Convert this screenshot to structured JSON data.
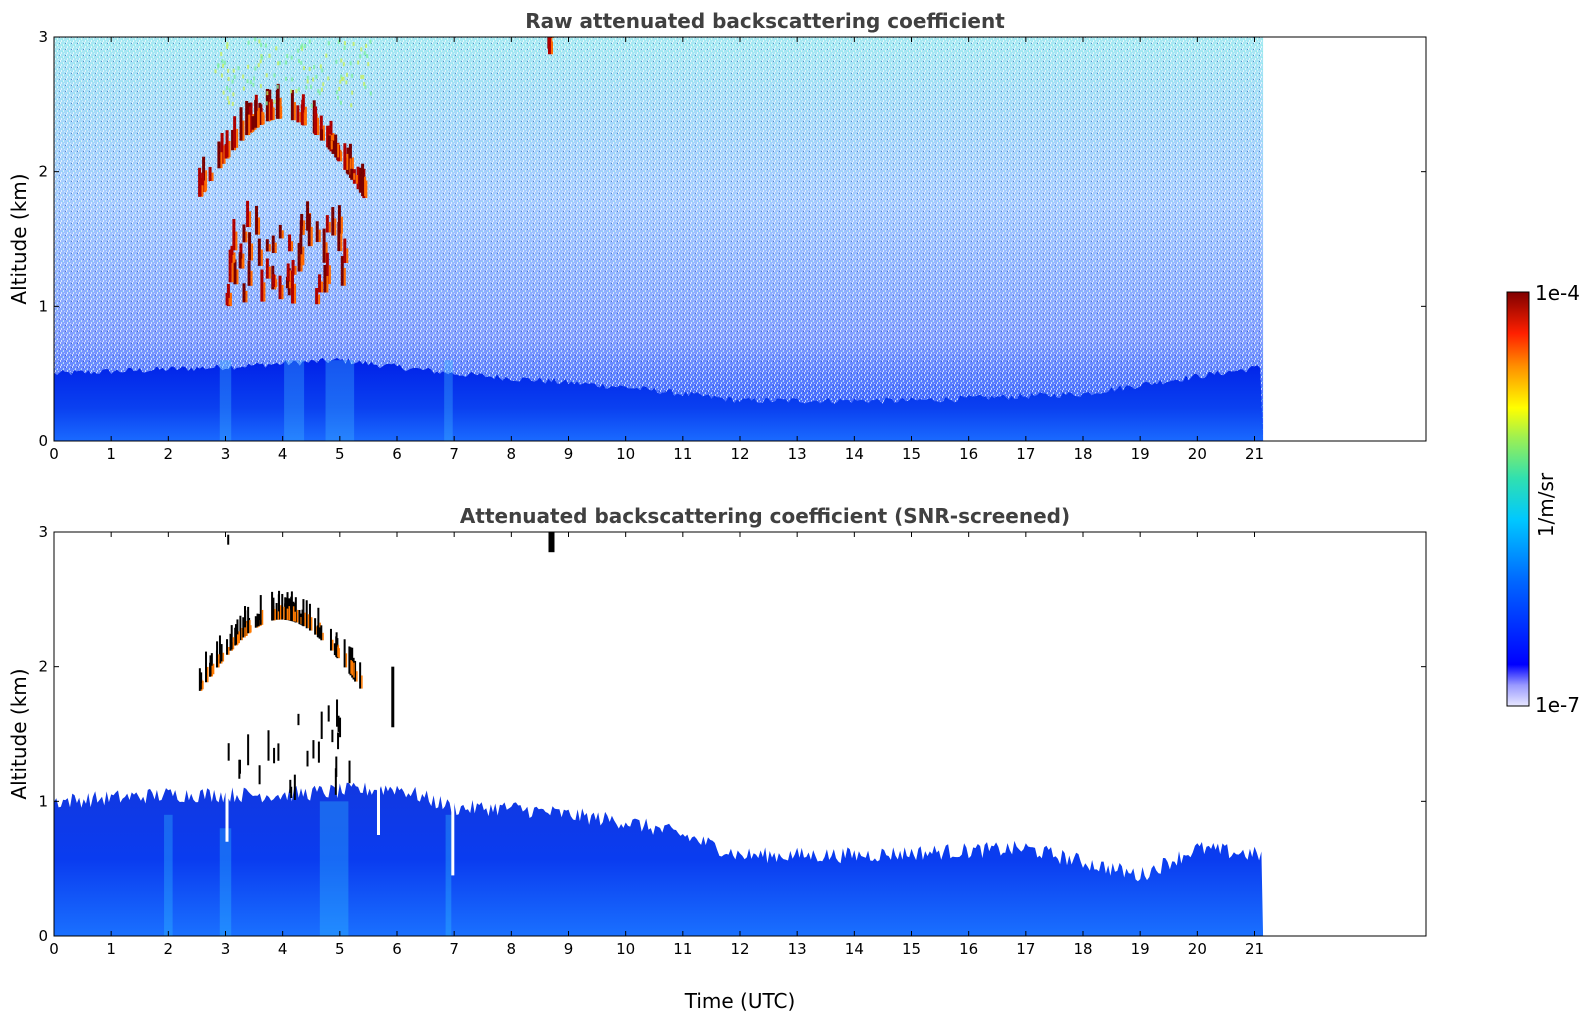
{
  "chart_data": [
    {
      "type": "heatmap",
      "title": "Raw attenuated backscattering coefficient",
      "xlabel": "",
      "ylabel": "Altitude (km)",
      "xlim": [
        0,
        24
      ],
      "ylim": [
        0,
        3
      ],
      "x_ticks": [
        "0",
        "1",
        "2",
        "3",
        "4",
        "5",
        "6",
        "7",
        "8",
        "9",
        "10",
        "11",
        "12",
        "13",
        "14",
        "15",
        "16",
        "17",
        "18",
        "19",
        "20",
        "21"
      ],
      "y_ticks": [
        "0",
        "1",
        "2",
        "3"
      ],
      "data_time_range_utc": [
        0,
        21.15
      ],
      "features": {
        "boundary_layer_top_km": [
          [
            0,
            0.5
          ],
          [
            3,
            0.55
          ],
          [
            5,
            0.6
          ],
          [
            7,
            0.5
          ],
          [
            10,
            0.4
          ],
          [
            12,
            0.3
          ],
          [
            15,
            0.3
          ],
          [
            18,
            0.35
          ],
          [
            19.5,
            0.45
          ],
          [
            21.15,
            0.55
          ]
        ],
        "cloud_layers": [
          {
            "time_utc": [
              2.5,
              5.4
            ],
            "altitude_km": [
              1.8,
              2.5
            ]
          },
          {
            "time_utc": [
              3.0,
              5.2
            ],
            "altitude_km": [
              1.0,
              1.6
            ]
          },
          {
            "time_utc": [
              8.6,
              8.75
            ],
            "altitude_km": [
              2.85,
              3.0
            ]
          }
        ]
      },
      "grid": false
    },
    {
      "type": "heatmap",
      "title": "Attenuated backscattering coefficient (SNR-screened)",
      "xlabel": "Time (UTC)",
      "ylabel": "Altitude (km)",
      "xlim": [
        0,
        24
      ],
      "ylim": [
        0,
        3
      ],
      "x_ticks": [
        "0",
        "1",
        "2",
        "3",
        "4",
        "5",
        "6",
        "7",
        "8",
        "9",
        "10",
        "11",
        "12",
        "13",
        "14",
        "15",
        "16",
        "17",
        "18",
        "19",
        "20",
        "21"
      ],
      "y_ticks": [
        "0",
        "1",
        "2",
        "3"
      ],
      "data_time_range_utc": [
        0,
        21.15
      ],
      "features": {
        "screened_layer_top_km": [
          [
            0,
            1.0
          ],
          [
            2,
            1.05
          ],
          [
            4,
            1.05
          ],
          [
            6,
            1.1
          ],
          [
            7,
            0.95
          ],
          [
            8,
            0.95
          ],
          [
            10,
            0.85
          ],
          [
            11,
            0.75
          ],
          [
            12,
            0.6
          ],
          [
            14,
            0.6
          ],
          [
            17,
            0.65
          ],
          [
            18,
            0.55
          ],
          [
            19,
            0.45
          ],
          [
            20,
            0.65
          ],
          [
            21.15,
            0.6
          ]
        ]
      },
      "grid": false
    }
  ],
  "colorbar": {
    "label": "1/m/sr",
    "max_label": "1e-4",
    "min_label": "1e-7",
    "scale": "log",
    "colormap": "jet"
  }
}
